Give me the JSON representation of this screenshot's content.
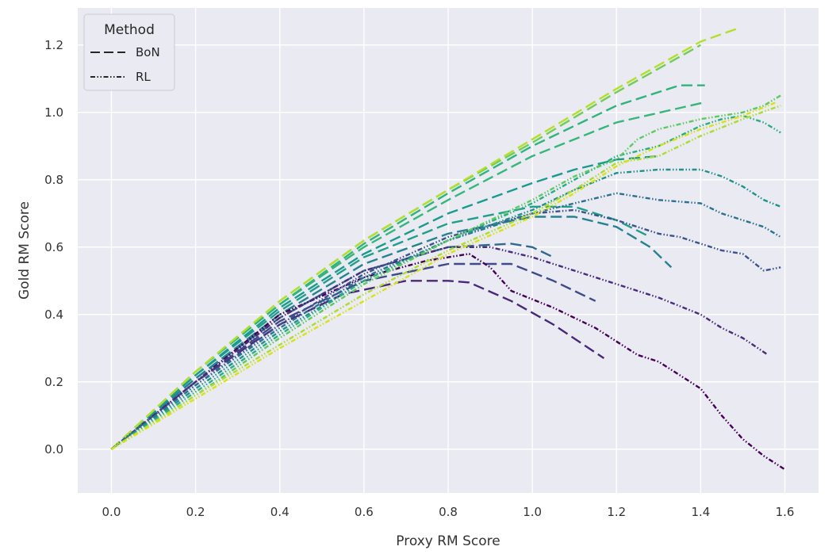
{
  "chart_data": {
    "type": "line",
    "title": "",
    "xlabel": "Proxy RM Score",
    "ylabel": "Gold RM Score",
    "xlim": [
      -0.08,
      1.68
    ],
    "ylim": [
      -0.13,
      1.31
    ],
    "xticks": [
      0.0,
      0.2,
      0.4,
      0.6,
      0.8,
      1.0,
      1.2,
      1.4,
      1.6
    ],
    "yticks": [
      0.0,
      0.2,
      0.4,
      0.6,
      0.8,
      1.0,
      1.2
    ],
    "xtick_labels": [
      "0.0",
      "0.2",
      "0.4",
      "0.6",
      "0.8",
      "1.0",
      "1.2",
      "1.4",
      "1.6"
    ],
    "ytick_labels": [
      "0.0",
      "0.2",
      "0.4",
      "0.6",
      "0.8",
      "1.0",
      "1.2"
    ],
    "grid": true,
    "legend": {
      "title": "Method",
      "position": "top-left",
      "entries": [
        {
          "label": "BoN",
          "style": "dashed"
        },
        {
          "label": "RL",
          "style": "dashdotdot"
        }
      ]
    },
    "colors": {
      "background": "#eaeaf2",
      "grid": "#ffffff",
      "palette": "viridis"
    },
    "series": [
      {
        "name": "BoN",
        "style": "dashed",
        "color": "#482878",
        "x": [
          0,
          0.2,
          0.4,
          0.55,
          0.7,
          0.8,
          0.85,
          0.95,
          1.05,
          1.17
        ],
        "y": [
          0,
          0.2,
          0.37,
          0.46,
          0.5,
          0.5,
          0.495,
          0.44,
          0.37,
          0.27
        ]
      },
      {
        "name": "BoN",
        "style": "dashed",
        "color": "#3e4a89",
        "x": [
          0,
          0.2,
          0.4,
          0.6,
          0.8,
          0.95,
          1.05,
          1.15
        ],
        "y": [
          0,
          0.2,
          0.38,
          0.5,
          0.55,
          0.55,
          0.5,
          0.44
        ]
      },
      {
        "name": "BoN",
        "style": "dashed",
        "color": "#31688e",
        "x": [
          0,
          0.2,
          0.4,
          0.6,
          0.8,
          0.95,
          1.0,
          1.05
        ],
        "y": [
          0,
          0.21,
          0.39,
          0.53,
          0.6,
          0.61,
          0.6,
          0.57
        ]
      },
      {
        "name": "BoN",
        "style": "dashed",
        "color": "#26828e",
        "x": [
          0,
          0.2,
          0.4,
          0.6,
          0.8,
          1.0,
          1.1,
          1.2,
          1.28,
          1.33
        ],
        "y": [
          0,
          0.21,
          0.4,
          0.55,
          0.64,
          0.69,
          0.69,
          0.66,
          0.6,
          0.54
        ]
      },
      {
        "name": "BoN",
        "style": "dashed",
        "color": "#1f9e89",
        "x": [
          0,
          0.2,
          0.4,
          0.6,
          0.8,
          1.0,
          1.1,
          1.2,
          1.28
        ],
        "y": [
          0,
          0.22,
          0.41,
          0.57,
          0.67,
          0.72,
          0.72,
          0.68,
          0.63
        ]
      },
      {
        "name": "BoN",
        "style": "dashed",
        "color": "#1a9a8c",
        "x": [
          0,
          0.2,
          0.4,
          0.6,
          0.8,
          1.0,
          1.1,
          1.2,
          1.3
        ],
        "y": [
          0,
          0.22,
          0.42,
          0.58,
          0.7,
          0.79,
          0.83,
          0.86,
          0.87
        ]
      },
      {
        "name": "BoN",
        "style": "dashed",
        "color": "#35b779",
        "x": [
          0,
          0.2,
          0.4,
          0.6,
          0.8,
          1.0,
          1.2,
          1.41
        ],
        "y": [
          0,
          0.23,
          0.43,
          0.6,
          0.74,
          0.87,
          0.97,
          1.03
        ]
      },
      {
        "name": "BoN",
        "style": "dashed",
        "color": "#2fb47c",
        "x": [
          0,
          0.2,
          0.4,
          0.6,
          0.8,
          1.0,
          1.2,
          1.35,
          1.41
        ],
        "y": [
          0,
          0.23,
          0.43,
          0.61,
          0.76,
          0.9,
          1.02,
          1.08,
          1.08
        ]
      },
      {
        "name": "BoN",
        "style": "dashed",
        "color": "#6ece58",
        "x": [
          0,
          0.2,
          0.4,
          0.6,
          0.8,
          1.0,
          1.2,
          1.4
        ],
        "y": [
          0,
          0.23,
          0.44,
          0.62,
          0.77,
          0.91,
          1.06,
          1.2
        ]
      },
      {
        "name": "BoN",
        "style": "dashed",
        "color": "#b5de2b",
        "x": [
          0,
          0.2,
          0.4,
          0.6,
          0.8,
          1.0,
          1.2,
          1.4,
          1.49
        ],
        "y": [
          0,
          0.23,
          0.44,
          0.62,
          0.77,
          0.92,
          1.07,
          1.21,
          1.25
        ]
      },
      {
        "name": "RL",
        "style": "dashdotdot",
        "color": "#440154",
        "x": [
          0,
          0.2,
          0.4,
          0.6,
          0.75,
          0.85,
          0.9,
          0.95,
          1.05,
          1.15,
          1.25,
          1.3,
          1.35,
          1.4,
          1.45,
          1.5,
          1.55,
          1.6
        ],
        "y": [
          0,
          0.2,
          0.4,
          0.51,
          0.56,
          0.58,
          0.54,
          0.47,
          0.42,
          0.36,
          0.28,
          0.26,
          0.22,
          0.18,
          0.1,
          0.03,
          -0.02,
          -0.06
        ]
      },
      {
        "name": "RL",
        "style": "dashdotdot",
        "color": "#472c7a",
        "x": [
          0,
          0.2,
          0.4,
          0.6,
          0.8,
          0.9,
          1.0,
          1.1,
          1.2,
          1.3,
          1.4,
          1.45,
          1.5,
          1.56
        ],
        "y": [
          0,
          0.2,
          0.39,
          0.53,
          0.6,
          0.6,
          0.57,
          0.53,
          0.49,
          0.45,
          0.4,
          0.36,
          0.33,
          0.28
        ]
      },
      {
        "name": "RL",
        "style": "dashdotdot",
        "color": "#3b528b",
        "x": [
          0,
          0.2,
          0.4,
          0.6,
          0.8,
          1.0,
          1.1,
          1.2,
          1.3,
          1.35,
          1.4,
          1.45,
          1.5,
          1.55,
          1.59
        ],
        "y": [
          0,
          0.19,
          0.37,
          0.52,
          0.63,
          0.7,
          0.71,
          0.68,
          0.64,
          0.63,
          0.61,
          0.59,
          0.58,
          0.53,
          0.54
        ]
      },
      {
        "name": "RL",
        "style": "dashdotdot",
        "color": "#2c728e",
        "x": [
          0,
          0.2,
          0.4,
          0.6,
          0.8,
          1.0,
          1.1,
          1.2,
          1.3,
          1.4,
          1.45,
          1.5,
          1.55,
          1.59
        ],
        "y": [
          0,
          0.19,
          0.36,
          0.51,
          0.62,
          0.7,
          0.73,
          0.76,
          0.74,
          0.73,
          0.7,
          0.68,
          0.66,
          0.63
        ]
      },
      {
        "name": "RL",
        "style": "dashdotdot",
        "color": "#21918c",
        "x": [
          0,
          0.2,
          0.4,
          0.6,
          0.8,
          1.0,
          1.1,
          1.2,
          1.3,
          1.4,
          1.45,
          1.5,
          1.55,
          1.59
        ],
        "y": [
          0,
          0.18,
          0.35,
          0.5,
          0.62,
          0.71,
          0.77,
          0.82,
          0.83,
          0.83,
          0.81,
          0.78,
          0.74,
          0.72
        ]
      },
      {
        "name": "RL",
        "style": "dashdotdot",
        "color": "#28ae80",
        "x": [
          0,
          0.2,
          0.4,
          0.6,
          0.8,
          1.0,
          1.1,
          1.2,
          1.3,
          1.4,
          1.45,
          1.5,
          1.55,
          1.59
        ],
        "y": [
          0,
          0.17,
          0.34,
          0.5,
          0.62,
          0.73,
          0.8,
          0.87,
          0.9,
          0.96,
          0.98,
          0.99,
          0.97,
          0.94
        ]
      },
      {
        "name": "RL",
        "style": "dashdotdot",
        "color": "#5ec962",
        "x": [
          0,
          0.2,
          0.4,
          0.6,
          0.8,
          1.0,
          1.1,
          1.2,
          1.25,
          1.3,
          1.4,
          1.5,
          1.55,
          1.59
        ],
        "y": [
          0,
          0.16,
          0.33,
          0.49,
          0.62,
          0.74,
          0.81,
          0.86,
          0.92,
          0.95,
          0.98,
          1.0,
          1.02,
          1.05
        ]
      },
      {
        "name": "RL",
        "style": "dashdotdot",
        "color": "#addc30",
        "x": [
          0,
          0.2,
          0.4,
          0.6,
          0.8,
          1.0,
          1.1,
          1.2,
          1.3,
          1.4,
          1.5,
          1.59
        ],
        "y": [
          0,
          0.16,
          0.31,
          0.46,
          0.59,
          0.7,
          0.77,
          0.85,
          0.87,
          0.93,
          0.98,
          1.02
        ]
      },
      {
        "name": "RL",
        "style": "dashdotdot",
        "color": "#d8e219",
        "x": [
          0,
          0.2,
          0.4,
          0.6,
          0.8,
          1.0,
          1.1,
          1.2,
          1.3,
          1.4,
          1.5,
          1.58
        ],
        "y": [
          0,
          0.15,
          0.3,
          0.44,
          0.58,
          0.69,
          0.76,
          0.84,
          0.9,
          0.95,
          0.99,
          1.03
        ]
      }
    ]
  }
}
